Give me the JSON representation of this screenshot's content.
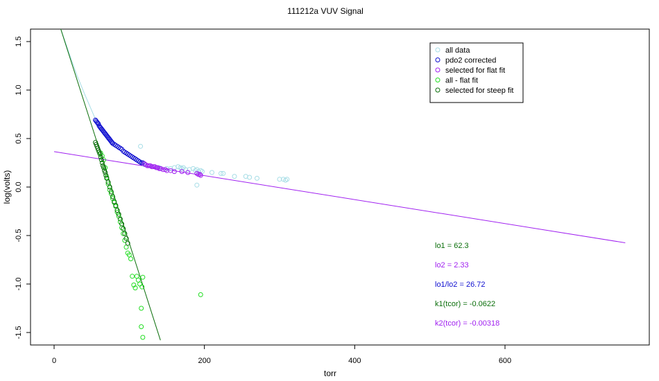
{
  "chart_data": {
    "type": "scatter",
    "title": "111212a   VUV Signal",
    "xlabel": "torr",
    "ylabel": "log(volts)",
    "xlim": [
      -30,
      790
    ],
    "ylim": [
      -1.58,
      1.6
    ],
    "x_ticks": [
      0,
      200,
      400,
      600
    ],
    "y_ticks": [
      -1.5,
      -1.0,
      -0.5,
      0.0,
      0.5,
      1.0,
      1.5
    ],
    "x_tick_labels": [
      "0",
      "200",
      "400",
      "600"
    ],
    "y_tick_labels": [
      "-1.5",
      "-1.0",
      "-0.5",
      "0.0",
      "0.5",
      "1.0",
      "1.5"
    ],
    "grid": false,
    "legend_position": "top-right",
    "colors": {
      "all_data": "#a6dde6",
      "pdo2_corrected": "#1010d0",
      "flat_fit": "#a020f0",
      "all_flat_fit": "#22dd22",
      "steep_fit": "#0a6e0a",
      "axis": "#000000"
    },
    "legend": [
      {
        "label": "all data",
        "color": "#a6dde6"
      },
      {
        "label": "pdo2 corrected",
        "color": "#1010d0"
      },
      {
        "label": "selected for flat fit",
        "color": "#a020f0"
      },
      {
        "label": "all - flat fit",
        "color": "#22dd22"
      },
      {
        "label": "selected for steep fit",
        "color": "#0a6e0a"
      }
    ],
    "annotations": [
      {
        "text": "lo1 =  62.3",
        "color": "#0a6e0a"
      },
      {
        "text": "lo2 =  2.33",
        "color": "#a020f0"
      },
      {
        "text": "lo1/lo2 =  26.72",
        "color": "#1010d0"
      },
      {
        "text": "k1(tcor) =  -0.0622",
        "color": "#0a6e0a"
      },
      {
        "text": "k2(tcor) =  -0.00318",
        "color": "#a020f0"
      }
    ],
    "fit_lines": [
      {
        "name": "steep fit",
        "color": "#0a6e0a",
        "x": [
          8,
          141.5
        ],
        "y": [
          1.65,
          -1.58
        ]
      },
      {
        "name": "flat fit",
        "color": "#a020f0",
        "x": [
          0,
          760
        ],
        "y": [
          0.365,
          -0.575
        ]
      }
    ],
    "all_data_curve": {
      "color": "#a6dde6",
      "x": [
        8,
        20,
        30,
        40,
        50,
        55
      ],
      "y": [
        1.65,
        1.38,
        1.16,
        0.97,
        0.79,
        0.7
      ]
    },
    "series": [
      {
        "name": "all data",
        "color": "#a6dde6",
        "points": [
          [
            115,
            0.42
          ],
          [
            120,
            0.23
          ],
          [
            125,
            0.22
          ],
          [
            130,
            0.21
          ],
          [
            140,
            0.2
          ],
          [
            150,
            0.19
          ],
          [
            155,
            0.19
          ],
          [
            160,
            0.2
          ],
          [
            165,
            0.21
          ],
          [
            168,
            0.2
          ],
          [
            170,
            0.19
          ],
          [
            172,
            0.2
          ],
          [
            175,
            0.18
          ],
          [
            180,
            0.18
          ],
          [
            185,
            0.19
          ],
          [
            188,
            0.17
          ],
          [
            190,
            0.18
          ],
          [
            192,
            0.16
          ],
          [
            195,
            0.17
          ],
          [
            197,
            0.16
          ],
          [
            190,
            0.02
          ],
          [
            210,
            0.15
          ],
          [
            222,
            0.14
          ],
          [
            225,
            0.14
          ],
          [
            240,
            0.11
          ],
          [
            255,
            0.11
          ],
          [
            260,
            0.1
          ],
          [
            270,
            0.09
          ],
          [
            300,
            0.08
          ],
          [
            305,
            0.08
          ],
          [
            308,
            0.07
          ],
          [
            310,
            0.08
          ]
        ]
      },
      {
        "name": "pdo2 corrected",
        "color": "#1010d0",
        "points": [
          [
            55,
            0.69
          ],
          [
            56,
            0.68
          ],
          [
            57,
            0.67
          ],
          [
            58,
            0.66
          ],
          [
            59,
            0.65
          ],
          [
            60,
            0.63
          ],
          [
            61,
            0.62
          ],
          [
            62,
            0.61
          ],
          [
            63,
            0.6
          ],
          [
            64,
            0.59
          ],
          [
            65,
            0.58
          ],
          [
            66,
            0.57
          ],
          [
            67,
            0.56
          ],
          [
            68,
            0.55
          ],
          [
            69,
            0.54
          ],
          [
            70,
            0.53
          ],
          [
            71,
            0.52
          ],
          [
            72,
            0.51
          ],
          [
            73,
            0.5
          ],
          [
            74,
            0.49
          ],
          [
            75,
            0.48
          ],
          [
            76,
            0.47
          ],
          [
            77,
            0.46
          ],
          [
            78,
            0.45
          ],
          [
            80,
            0.44
          ],
          [
            82,
            0.43
          ],
          [
            84,
            0.42
          ],
          [
            86,
            0.41
          ],
          [
            88,
            0.4
          ],
          [
            90,
            0.39
          ],
          [
            92,
            0.37
          ],
          [
            94,
            0.36
          ],
          [
            96,
            0.35
          ],
          [
            98,
            0.34
          ],
          [
            100,
            0.33
          ],
          [
            102,
            0.32
          ],
          [
            104,
            0.31
          ],
          [
            106,
            0.3
          ],
          [
            108,
            0.29
          ],
          [
            110,
            0.28
          ],
          [
            112,
            0.27
          ],
          [
            114,
            0.26
          ],
          [
            116,
            0.25
          ],
          [
            118,
            0.25
          ],
          [
            120,
            0.24
          ]
        ]
      },
      {
        "name": "selected for flat fit",
        "color": "#a020f0",
        "points": [
          [
            120,
            0.24
          ],
          [
            122,
            0.23
          ],
          [
            124,
            0.22
          ],
          [
            126,
            0.22
          ],
          [
            128,
            0.22
          ],
          [
            130,
            0.21
          ],
          [
            132,
            0.21
          ],
          [
            134,
            0.21
          ],
          [
            136,
            0.2
          ],
          [
            138,
            0.2
          ],
          [
            140,
            0.19
          ],
          [
            142,
            0.19
          ],
          [
            145,
            0.18
          ],
          [
            148,
            0.18
          ],
          [
            150,
            0.17
          ],
          [
            155,
            0.17
          ],
          [
            160,
            0.16
          ],
          [
            170,
            0.16
          ],
          [
            178,
            0.15
          ],
          [
            190,
            0.14
          ],
          [
            192,
            0.13
          ],
          [
            194,
            0.13
          ],
          [
            195,
            0.12
          ]
        ]
      },
      {
        "name": "all - flat fit",
        "color": "#22dd22",
        "points": [
          [
            62,
            0.35
          ],
          [
            64,
            0.32
          ],
          [
            66,
            0.28
          ],
          [
            68,
            0.2
          ],
          [
            70,
            0.1
          ],
          [
            72,
            0.03
          ],
          [
            74,
            -0.03
          ],
          [
            76,
            -0.07
          ],
          [
            78,
            -0.12
          ],
          [
            80,
            -0.16
          ],
          [
            82,
            -0.2
          ],
          [
            84,
            -0.26
          ],
          [
            86,
            -0.3
          ],
          [
            88,
            -0.36
          ],
          [
            90,
            -0.42
          ],
          [
            92,
            -0.48
          ],
          [
            94,
            -0.55
          ],
          [
            96,
            -0.62
          ],
          [
            98,
            -0.68
          ],
          [
            100,
            -0.7
          ],
          [
            102,
            -0.74
          ],
          [
            104,
            -0.92
          ],
          [
            106,
            -1.01
          ],
          [
            108,
            -1.04
          ],
          [
            110,
            -0.92
          ],
          [
            112,
            -0.96
          ],
          [
            114,
            -1.0
          ],
          [
            116,
            -1.25
          ],
          [
            116,
            -1.44
          ],
          [
            118,
            -1.55
          ],
          [
            195,
            -1.11
          ],
          [
            118,
            -0.93
          ],
          [
            117,
            -1.03
          ]
        ]
      },
      {
        "name": "selected for steep fit",
        "color": "#0a6e0a",
        "points": [
          [
            55,
            0.46
          ],
          [
            56,
            0.44
          ],
          [
            57,
            0.42
          ],
          [
            58,
            0.4
          ],
          [
            59,
            0.38
          ],
          [
            60,
            0.36
          ],
          [
            61,
            0.34
          ],
          [
            62,
            0.31
          ],
          [
            63,
            0.28
          ],
          [
            64,
            0.25
          ],
          [
            65,
            0.22
          ],
          [
            66,
            0.2
          ],
          [
            67,
            0.17
          ],
          [
            68,
            0.15
          ],
          [
            69,
            0.12
          ],
          [
            70,
            0.09
          ],
          [
            72,
            0.05
          ],
          [
            74,
            0.0
          ],
          [
            76,
            -0.05
          ],
          [
            78,
            -0.1
          ],
          [
            80,
            -0.15
          ],
          [
            82,
            -0.19
          ],
          [
            84,
            -0.24
          ],
          [
            86,
            -0.28
          ],
          [
            88,
            -0.33
          ],
          [
            90,
            -0.38
          ],
          [
            92,
            -0.43
          ],
          [
            94,
            -0.48
          ],
          [
            96,
            -0.53
          ],
          [
            98,
            -0.58
          ]
        ]
      }
    ]
  }
}
